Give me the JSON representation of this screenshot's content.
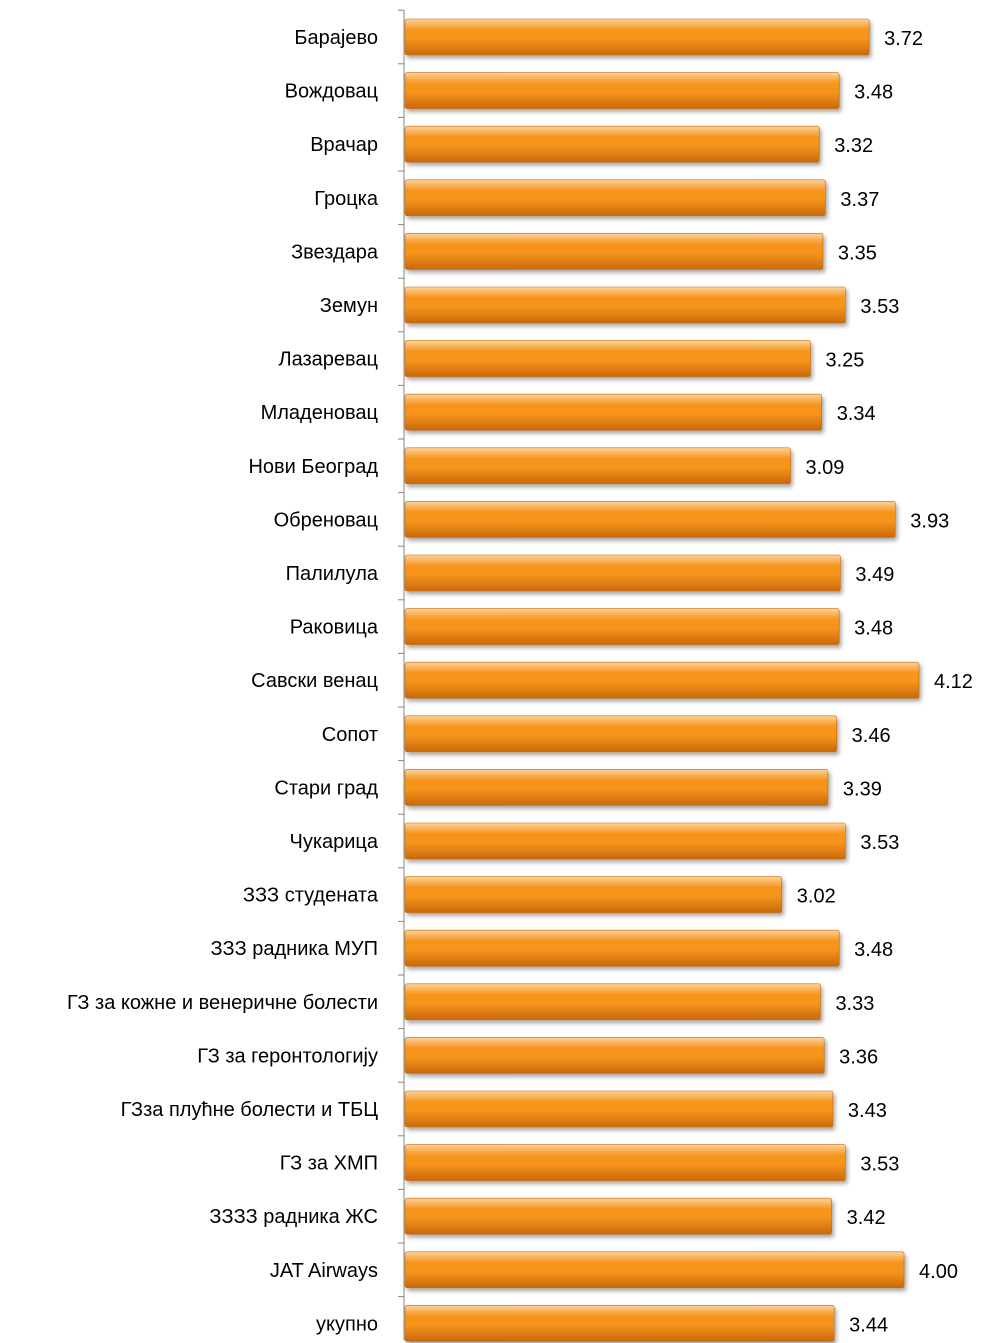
{
  "chart_data": {
    "type": "bar",
    "orientation": "horizontal",
    "categories": [
      "Барајево",
      "Вождовац",
      "Врачар",
      "Гроцка",
      "Звездара",
      "Земун",
      "Лазаревац",
      "Младеновац",
      "Нови Београд",
      "Обреновац",
      "Палилула",
      "Раковица",
      "Савски венац",
      "Сопот",
      "Стари град",
      "Чукарица",
      "ЗЗЗ студената",
      "ЗЗЗ радника МУП",
      "ГЗ за кожне и венеричне болести",
      "ГЗ за геронтологију",
      "ГЗза плућне болести и ТБЦ",
      "ГЗ за ХМП",
      "ЗЗЗЗ радника ЖС",
      "JAT Airways",
      "укупно"
    ],
    "values": [
      3.72,
      3.48,
      3.32,
      3.37,
      3.35,
      3.53,
      3.25,
      3.34,
      3.09,
      3.93,
      3.49,
      3.48,
      4.12,
      3.46,
      3.39,
      3.53,
      3.02,
      3.48,
      3.33,
      3.36,
      3.43,
      3.53,
      3.42,
      4.0,
      3.44
    ],
    "value_labels": [
      "3.72",
      "3.48",
      "3.32",
      "3.37",
      "3.35",
      "3.53",
      "3.25",
      "3.34",
      "3.09",
      "3.93",
      "3.49",
      "3.48",
      "4.12",
      "3.46",
      "3.39",
      "3.53",
      "3.02",
      "3.48",
      "3.33",
      "3.36",
      "3.43",
      "3.53",
      "3.42",
      "4.00",
      "3.44"
    ],
    "xlim": [
      0,
      4.12
    ],
    "bar_color": "#f7941d",
    "bar_highlight_color": "#fcd39b",
    "bar_shadow_color": "#c8690a",
    "axis_color": "#868686",
    "grid": false,
    "legend": "none"
  }
}
